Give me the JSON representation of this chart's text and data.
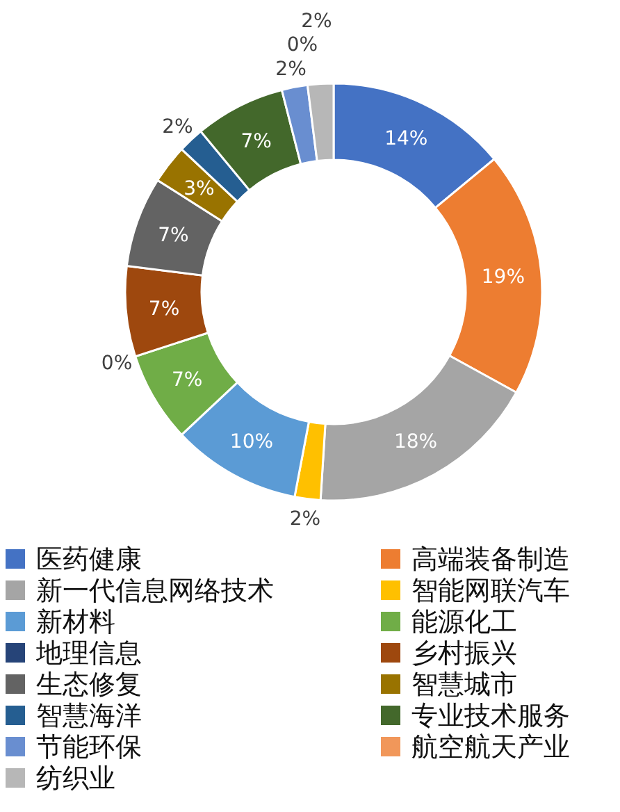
{
  "chart_data": {
    "type": "donut",
    "categories": [
      "医药健康",
      "高端装备制造",
      "新一代信息网络技术",
      "智能网联汽车",
      "新材料",
      "能源化工",
      "地理信息",
      "乡村振兴",
      "生态修复",
      "智慧城市",
      "智慧海洋",
      "专业技术服务",
      "节能环保",
      "航空航天产业",
      "纺织业"
    ],
    "values": [
      14,
      19,
      18,
      2,
      10,
      7,
      0,
      7,
      7,
      3,
      2,
      7,
      2,
      0,
      2
    ],
    "colors": [
      "#4472c4",
      "#ed7d31",
      "#a5a5a5",
      "#ffc000",
      "#5b9bd5",
      "#70ad47",
      "#264478",
      "#9e480e",
      "#636363",
      "#997300",
      "#255e91",
      "#43682b",
      "#698ed0",
      "#f1975a",
      "#b7b7b7"
    ],
    "value_labels": [
      "14%",
      "19%",
      "18%",
      "2%",
      "10%",
      "7%",
      "0%",
      "7%",
      "7%",
      "3%",
      "2%",
      "7%",
      "2%",
      "0%",
      "2%"
    ],
    "legend": "bottom"
  }
}
